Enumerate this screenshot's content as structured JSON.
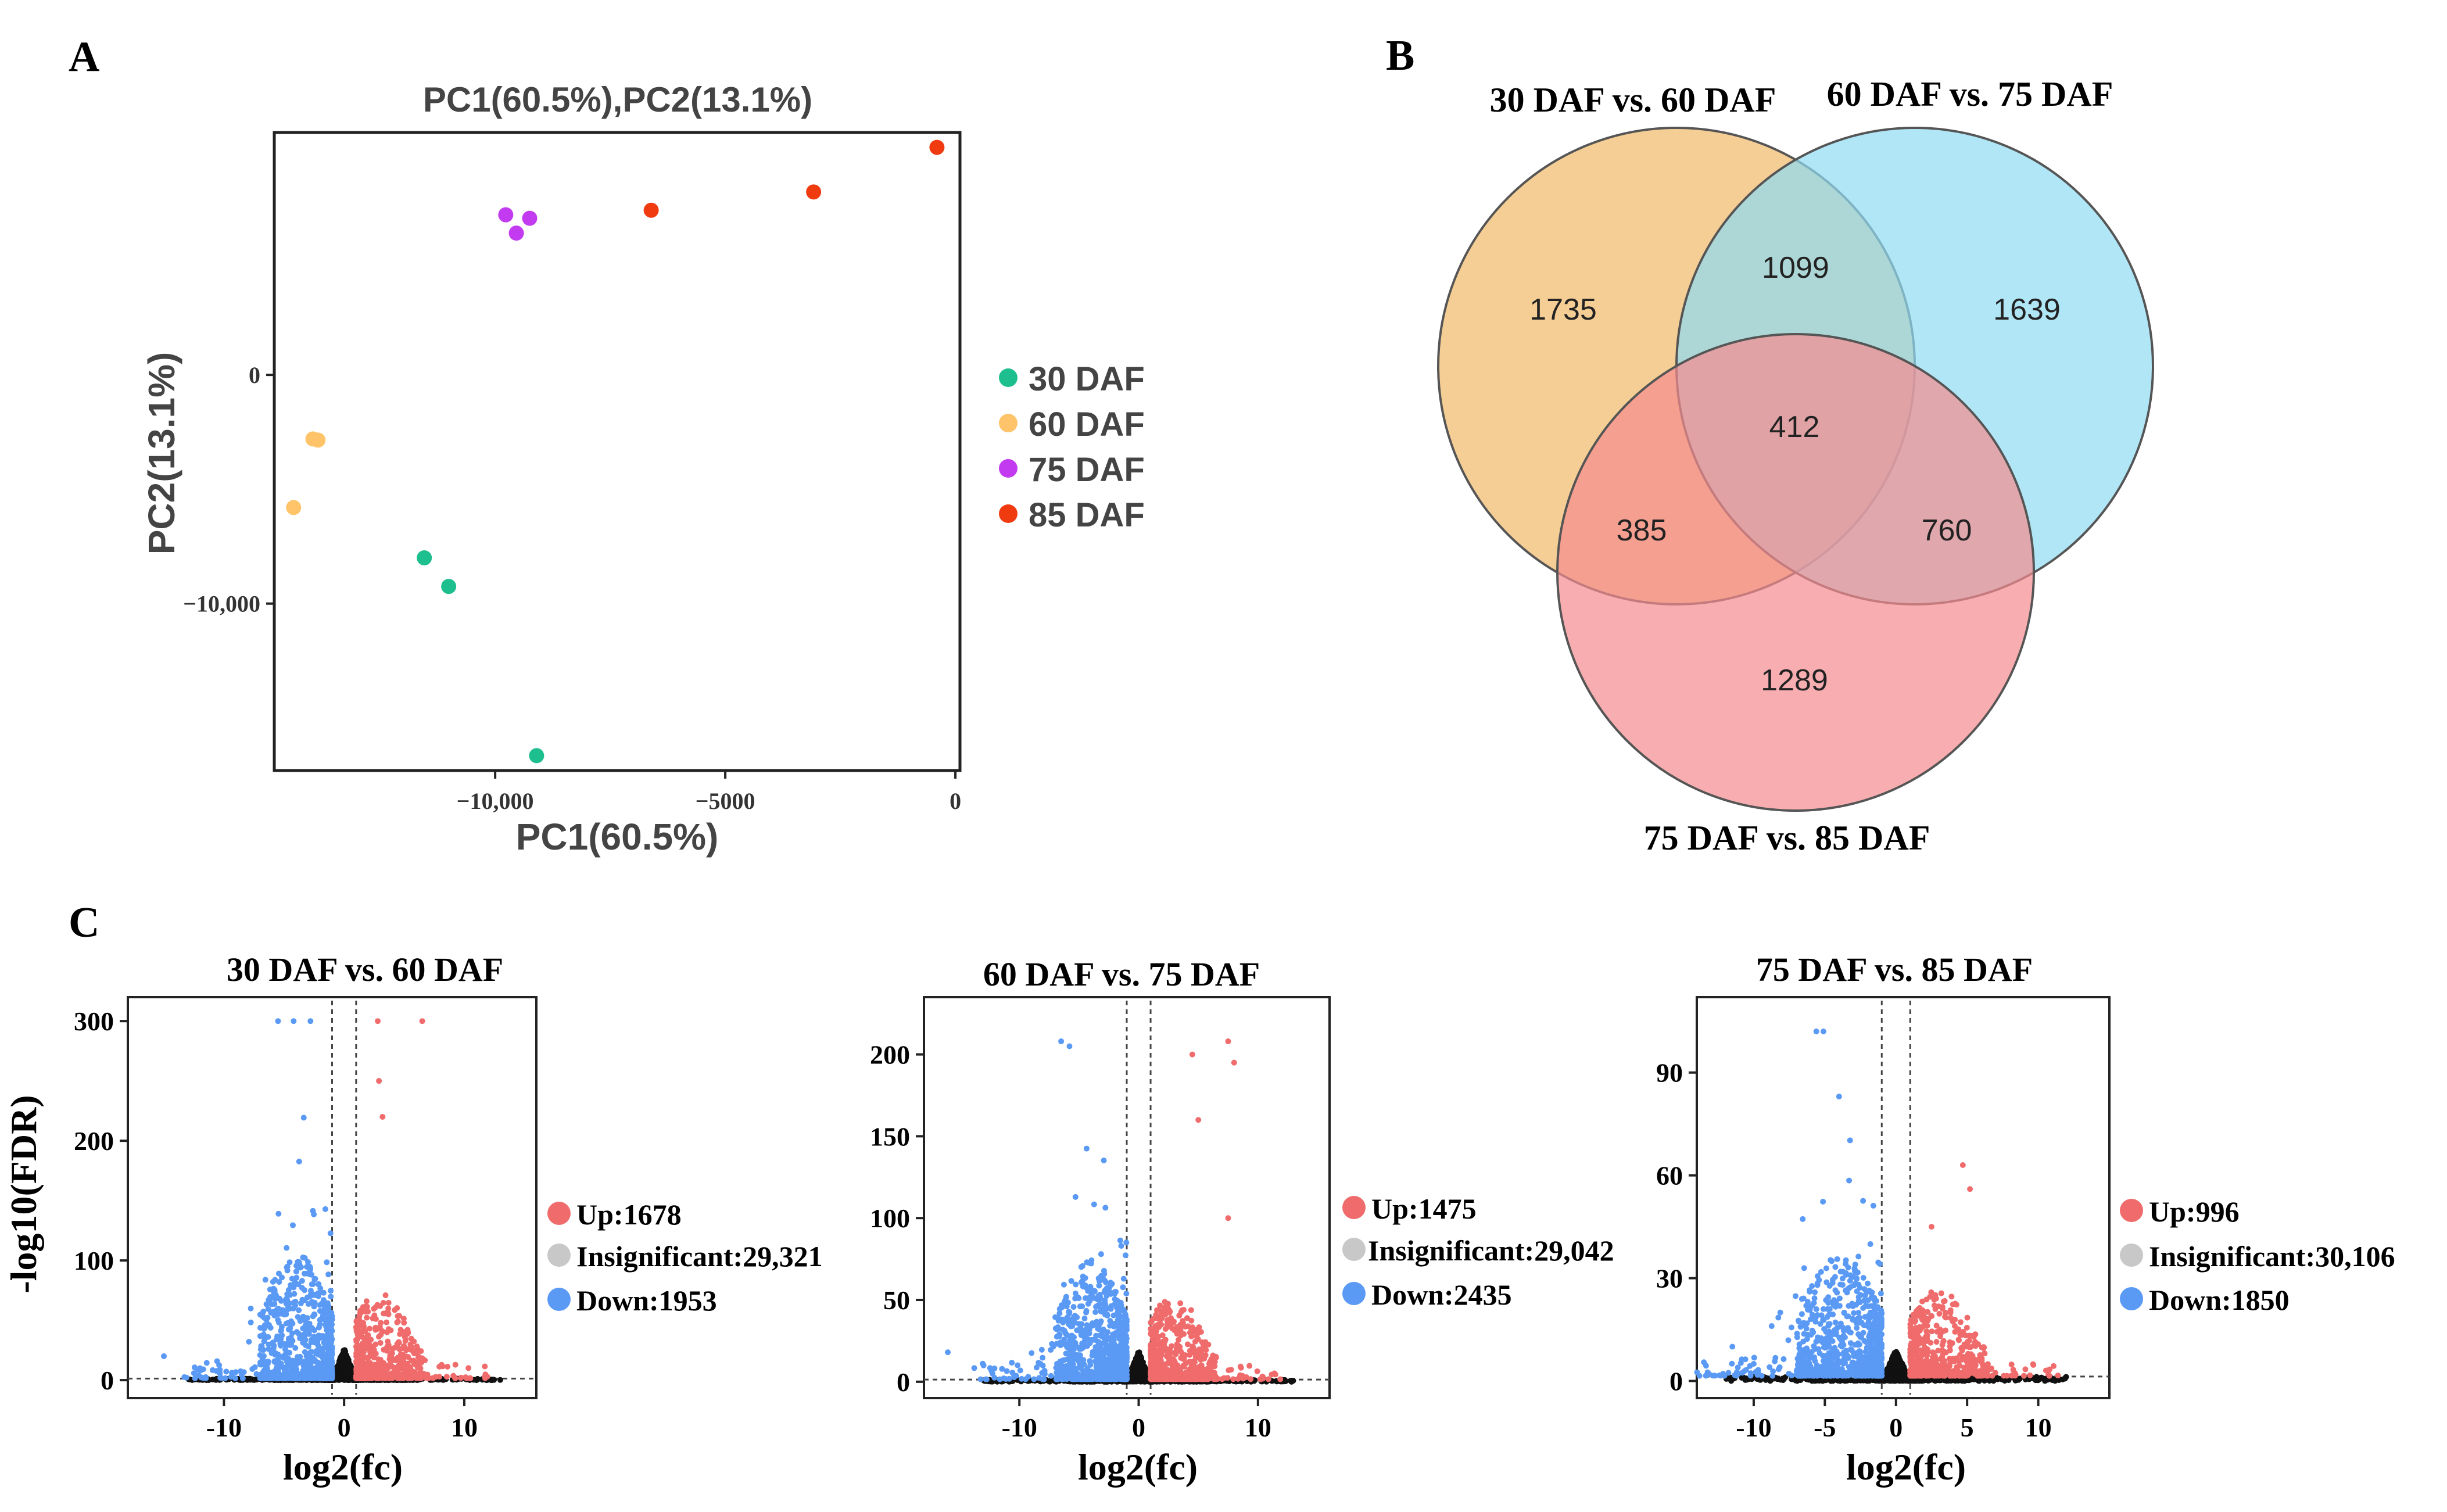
{
  "colors": {
    "pc_30": "#1dbf8f",
    "pc_60": "#ffc46a",
    "pc_75": "#c23bf0",
    "pc_85": "#f03a10",
    "venn_a": "#f3c27a",
    "venn_b": "#8fdcf2",
    "venn_c": "#f58b8f",
    "up": "#f06b6b",
    "down": "#5a9af5",
    "insig": "#c8c8c8",
    "ns_points": "#111111"
  },
  "panels": {
    "a": "A",
    "b": "B",
    "c": "C"
  },
  "chart_data": [
    {
      "type": "scatter",
      "id": "pca",
      "title": "PC1(60.5%),PC2(13.1%)",
      "xlabel": "PC1(60.5%)",
      "ylabel": "PC2(13.1%)",
      "xlim": [
        -14800,
        100
      ],
      "ylim": [
        -17300,
        10600
      ],
      "xticks": [
        -10000,
        -5000,
        0
      ],
      "xtick_labels": [
        "−10,000",
        "−5000",
        "0"
      ],
      "yticks": [
        0,
        -10000
      ],
      "ytick_labels": [
        "0",
        "−10,000"
      ],
      "legend": [
        "30 DAF",
        "60 DAF",
        "75 DAF",
        "85 DAF"
      ],
      "series": [
        {
          "name": "30 DAF",
          "points": [
            [
              -11540,
              -8000
            ],
            [
              -11010,
              -9250
            ],
            [
              -9100,
              -16650
            ]
          ]
        },
        {
          "name": "60 DAF",
          "points": [
            [
              -13960,
              -2800
            ],
            [
              -13850,
              -2850
            ],
            [
              -14380,
              -5800
            ]
          ]
        },
        {
          "name": "75 DAF",
          "points": [
            [
              -9770,
              7000
            ],
            [
              -9250,
              6850
            ],
            [
              -9540,
              6200
            ]
          ]
        },
        {
          "name": "85 DAF",
          "points": [
            [
              -6610,
              7200
            ],
            [
              -3080,
              8000
            ],
            [
              -400,
              9950
            ]
          ]
        }
      ]
    },
    {
      "type": "venn",
      "id": "venn",
      "sets": [
        "30 DAF vs. 60 DAF",
        "60 DAF vs. 75 DAF",
        "75 DAF vs. 85 DAF"
      ],
      "regions": {
        "a_only": 1735,
        "b_only": 1639,
        "c_only": 1289,
        "ab": 1099,
        "ac": 385,
        "bc": 760,
        "abc": 412
      }
    },
    {
      "type": "scatter",
      "id": "volcano1",
      "title": "30 DAF vs. 60 DAF",
      "xlabel": "log2(fc)",
      "ylabel": "-log10(FDR)",
      "xlim": [
        -18,
        16
      ],
      "ylim": [
        -15,
        320
      ],
      "xticks": [
        -10,
        0,
        10
      ],
      "yticks": [
        0,
        100,
        200,
        300
      ],
      "legend": [
        "Up:1678",
        "Insignificant:29,321",
        "Down:1953"
      ],
      "counts": {
        "up": 1678,
        "insignificant": 29321,
        "down": 1953
      },
      "max_y": 300,
      "highlights_up": [
        [
          2.8,
          300
        ],
        [
          6.5,
          300
        ],
        [
          2.9,
          250
        ],
        [
          3.2,
          220
        ]
      ],
      "highlights_down": [
        [
          -5.5,
          300
        ],
        [
          -4.2,
          300
        ],
        [
          -2.8,
          300
        ],
        [
          -15,
          20
        ],
        [
          -12,
          10
        ]
      ]
    },
    {
      "type": "scatter",
      "id": "volcano2",
      "title": "60 DAF vs. 75 DAF",
      "xlabel": "log2(fc)",
      "ylabel": "",
      "xlim": [
        -18,
        16
      ],
      "ylim": [
        -10,
        235
      ],
      "xticks": [
        -10,
        0,
        10
      ],
      "yticks": [
        0,
        50,
        100,
        150,
        200
      ],
      "legend": [
        "Up:1475",
        "Insignificant:29,042",
        "Down:2435"
      ],
      "counts": {
        "up": 1475,
        "insignificant": 29042,
        "down": 2435
      },
      "max_y": 210,
      "highlights_up": [
        [
          7.5,
          208
        ],
        [
          4.5,
          200
        ],
        [
          8.0,
          195
        ],
        [
          5.0,
          160
        ],
        [
          7.5,
          100
        ]
      ],
      "highlights_down": [
        [
          -6.5,
          208
        ],
        [
          -5.8,
          205
        ],
        [
          -16,
          18
        ],
        [
          -13,
          10
        ]
      ]
    },
    {
      "type": "scatter",
      "id": "volcano3",
      "title": "75 DAF vs. 85 DAF",
      "xlabel": "log2(fc)",
      "ylabel": "",
      "xlim": [
        -14,
        15
      ],
      "ylim": [
        -5,
        112
      ],
      "xticks": [
        -10,
        -5,
        0,
        5,
        10
      ],
      "yticks": [
        0,
        30,
        60,
        90
      ],
      "legend": [
        "Up:996",
        "Insignificant:30,106",
        "Down:1850"
      ],
      "counts": {
        "up": 996,
        "insignificant": 30106,
        "down": 1850
      },
      "max_y": 102,
      "highlights_up": [
        [
          4.7,
          63
        ],
        [
          5.2,
          56
        ],
        [
          2.5,
          45
        ]
      ],
      "highlights_down": [
        [
          -5.6,
          102
        ],
        [
          -5.1,
          102
        ],
        [
          -4.0,
          83
        ],
        [
          -11.5,
          10
        ],
        [
          -10,
          5
        ]
      ]
    }
  ]
}
